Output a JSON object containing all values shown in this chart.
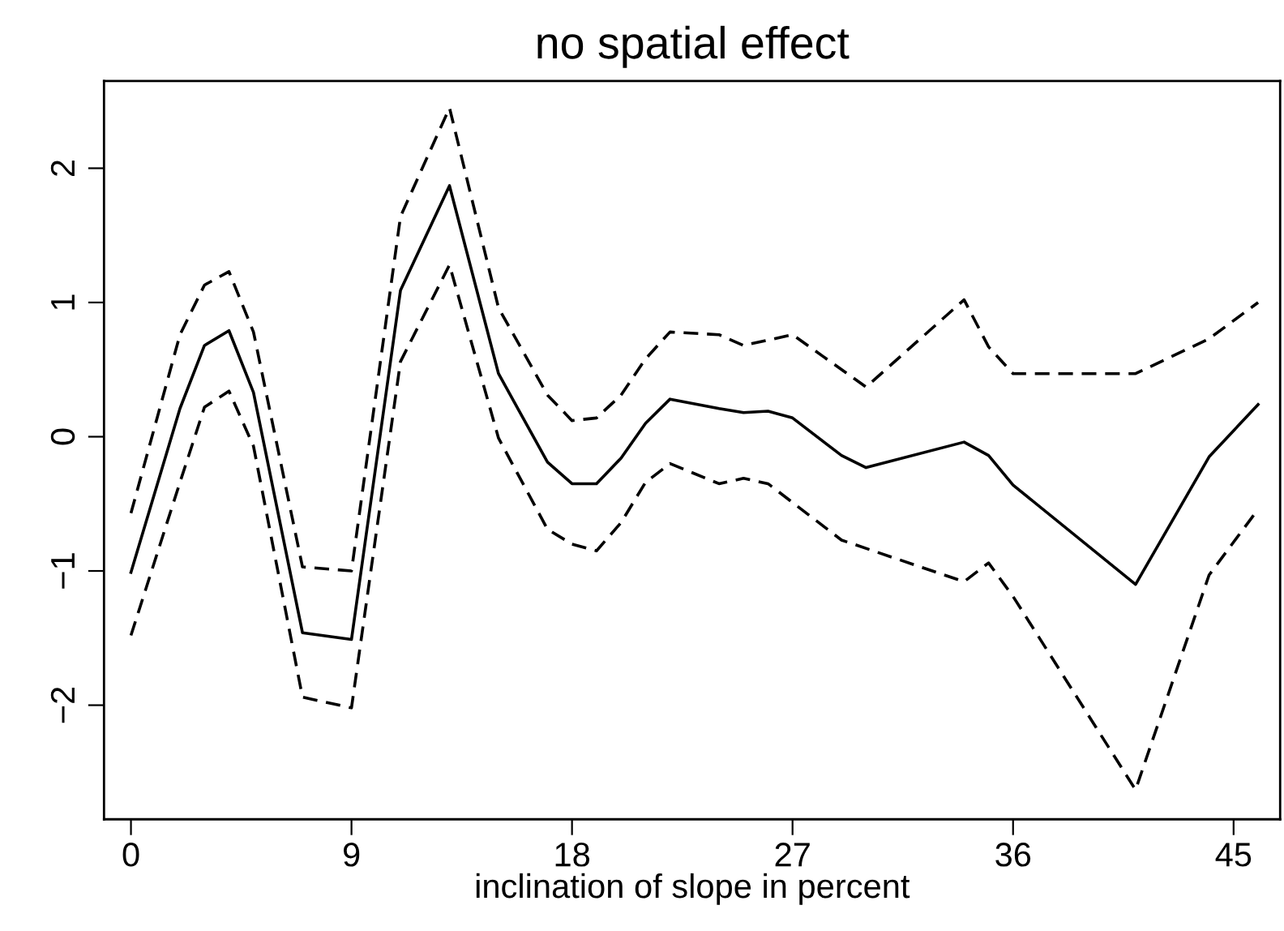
{
  "chart_data": {
    "type": "line",
    "title": "no spatial effect",
    "xlabel": "inclination of slope in percent",
    "series": [
      {
        "color": "#000000",
        "line_style": "solid",
        "x": [
          0,
          2,
          3,
          4,
          5,
          7,
          9,
          11,
          13,
          15,
          17,
          18,
          19,
          20,
          21,
          22,
          24,
          25,
          26,
          27,
          29,
          30,
          34,
          35,
          36,
          41,
          44,
          46
        ],
        "values": [
          -1.01,
          0.21,
          0.68,
          0.79,
          0.33,
          -1.46,
          -1.51,
          1.09,
          1.87,
          0.47,
          -0.19,
          -0.35,
          -0.35,
          -0.16,
          0.1,
          0.28,
          0.21,
          0.18,
          0.19,
          0.14,
          -0.14,
          -0.23,
          -0.04,
          -0.14,
          -0.36,
          -1.1,
          -0.15,
          0.24
        ]
      },
      {
        "color": "#000000",
        "line_style": "dashed",
        "x": [
          0,
          2,
          3,
          4,
          5,
          7,
          9,
          11,
          13,
          15,
          17,
          18,
          19,
          20,
          21,
          22,
          24,
          25,
          27,
          30,
          34,
          35,
          36,
          41,
          44,
          46
        ],
        "values": [
          -0.57,
          0.76,
          1.13,
          1.23,
          0.78,
          -0.97,
          -1.0,
          1.64,
          2.45,
          0.96,
          0.31,
          0.12,
          0.14,
          0.31,
          0.58,
          0.78,
          0.76,
          0.68,
          0.76,
          0.37,
          1.02,
          0.67,
          0.47,
          0.47,
          0.73,
          1.0
        ]
      },
      {
        "color": "#000000",
        "line_style": "dashed",
        "x": [
          0,
          2,
          3,
          4,
          5,
          7,
          9,
          11,
          13,
          15,
          17,
          18,
          19,
          20,
          21,
          22,
          24,
          25,
          26,
          29,
          34,
          35,
          36,
          41,
          44,
          46
        ],
        "values": [
          -1.48,
          -0.34,
          0.22,
          0.34,
          -0.07,
          -1.94,
          -2.02,
          0.56,
          1.28,
          -0.01,
          -0.69,
          -0.8,
          -0.85,
          -0.64,
          -0.34,
          -0.2,
          -0.35,
          -0.31,
          -0.35,
          -0.77,
          -1.08,
          -0.94,
          -1.19,
          -2.63,
          -1.03,
          -0.54
        ]
      }
    ],
    "xlim": [
      -1.1,
      46.9
    ],
    "xticks": [
      0,
      9,
      18,
      27,
      36,
      45
    ],
    "ylim": [
      -2.85,
      2.65
    ],
    "yticks": [
      {
        "value": -2,
        "label": "−2"
      },
      {
        "value": -1,
        "label": "−1"
      },
      0,
      1,
      2
    ],
    "grid": false,
    "legend": false,
    "marker": "none"
  }
}
